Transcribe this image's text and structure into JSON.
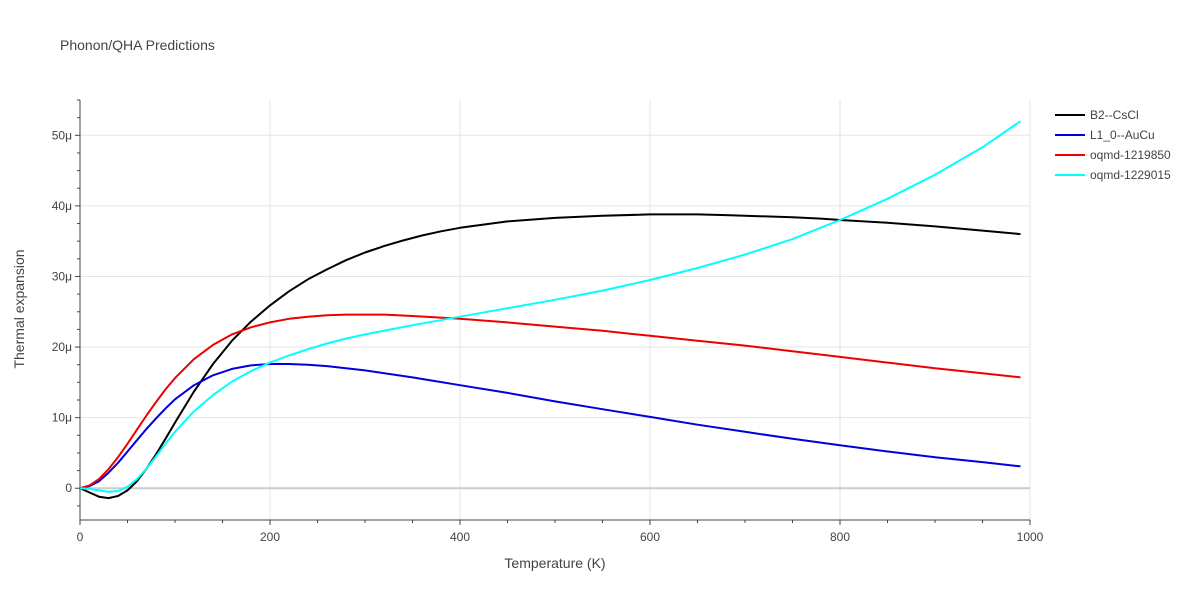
{
  "chart_data": {
    "type": "line",
    "title": "Phonon/QHA Predictions",
    "xlabel": "Temperature (K)",
    "ylabel": "Thermal expansion",
    "xlim": [
      0,
      1000
    ],
    "ylim": [
      -4.5,
      55
    ],
    "x_ticks": [
      0,
      200,
      400,
      600,
      800,
      1000
    ],
    "x_tick_labels": [
      "0",
      "200",
      "400",
      "600",
      "800",
      "1000"
    ],
    "y_ticks": [
      0,
      10,
      20,
      30,
      40,
      50
    ],
    "y_tick_labels": [
      "0",
      "10μ",
      "20μ",
      "30μ",
      "40μ",
      "50μ"
    ],
    "grid": true,
    "legend_position": "top-right",
    "series": [
      {
        "name": "B2--CsCl",
        "color": "#000000",
        "x": [
          0,
          10,
          20,
          30,
          40,
          50,
          60,
          70,
          80,
          90,
          100,
          120,
          140,
          160,
          180,
          200,
          220,
          240,
          260,
          280,
          300,
          320,
          340,
          360,
          380,
          400,
          450,
          500,
          550,
          600,
          620,
          650,
          680,
          700,
          750,
          780,
          800,
          850,
          900,
          950,
          990
        ],
        "y": [
          0,
          -0.6,
          -1.2,
          -1.4,
          -1.1,
          -0.3,
          1.0,
          2.8,
          4.8,
          7.0,
          9.3,
          13.7,
          17.6,
          20.9,
          23.6,
          25.9,
          27.9,
          29.6,
          31.0,
          32.3,
          33.4,
          34.3,
          35.1,
          35.8,
          36.4,
          36.9,
          37.8,
          38.3,
          38.6,
          38.8,
          38.8,
          38.8,
          38.7,
          38.6,
          38.4,
          38.2,
          38.0,
          37.6,
          37.1,
          36.5,
          36.0
        ]
      },
      {
        "name": "L1_0--AuCu",
        "color": "#0000dd",
        "x": [
          0,
          10,
          20,
          30,
          40,
          50,
          60,
          70,
          80,
          90,
          100,
          120,
          140,
          160,
          180,
          200,
          220,
          240,
          260,
          280,
          300,
          350,
          400,
          450,
          500,
          550,
          600,
          650,
          700,
          750,
          800,
          850,
          900,
          950,
          990
        ],
        "y": [
          0,
          0.3,
          1.0,
          2.2,
          3.6,
          5.2,
          6.8,
          8.4,
          9.9,
          11.3,
          12.6,
          14.6,
          16.0,
          16.9,
          17.4,
          17.6,
          17.6,
          17.5,
          17.3,
          17.0,
          16.7,
          15.7,
          14.6,
          13.5,
          12.3,
          11.2,
          10.1,
          9.0,
          8.0,
          7.0,
          6.1,
          5.2,
          4.4,
          3.7,
          3.1
        ]
      },
      {
        "name": "oqmd-1219850",
        "color": "#ee0000",
        "x": [
          0,
          10,
          20,
          30,
          40,
          50,
          60,
          70,
          80,
          90,
          100,
          120,
          140,
          160,
          180,
          200,
          220,
          240,
          260,
          280,
          300,
          320,
          350,
          400,
          450,
          500,
          550,
          600,
          650,
          700,
          750,
          800,
          850,
          900,
          950,
          990
        ],
        "y": [
          0,
          0.4,
          1.3,
          2.7,
          4.4,
          6.3,
          8.3,
          10.3,
          12.2,
          14.0,
          15.6,
          18.3,
          20.3,
          21.8,
          22.8,
          23.5,
          24.0,
          24.3,
          24.5,
          24.6,
          24.6,
          24.6,
          24.4,
          24.0,
          23.5,
          22.9,
          22.3,
          21.6,
          20.9,
          20.2,
          19.4,
          18.6,
          17.8,
          17.0,
          16.3,
          15.7
        ]
      },
      {
        "name": "oqmd-1229015",
        "color": "#00ffff",
        "x": [
          0,
          10,
          20,
          30,
          40,
          50,
          60,
          70,
          80,
          90,
          100,
          120,
          140,
          160,
          180,
          200,
          220,
          240,
          260,
          280,
          300,
          350,
          400,
          450,
          500,
          550,
          600,
          650,
          700,
          750,
          800,
          850,
          900,
          950,
          990
        ],
        "y": [
          0,
          -0.1,
          -0.3,
          -0.5,
          -0.4,
          0.2,
          1.3,
          2.8,
          4.5,
          6.3,
          8.0,
          10.9,
          13.2,
          15.1,
          16.6,
          17.8,
          18.8,
          19.7,
          20.5,
          21.2,
          21.8,
          23.1,
          24.3,
          25.5,
          26.7,
          28.0,
          29.5,
          31.2,
          33.1,
          35.3,
          38.0,
          41.0,
          44.4,
          48.3,
          52.0
        ]
      }
    ]
  }
}
